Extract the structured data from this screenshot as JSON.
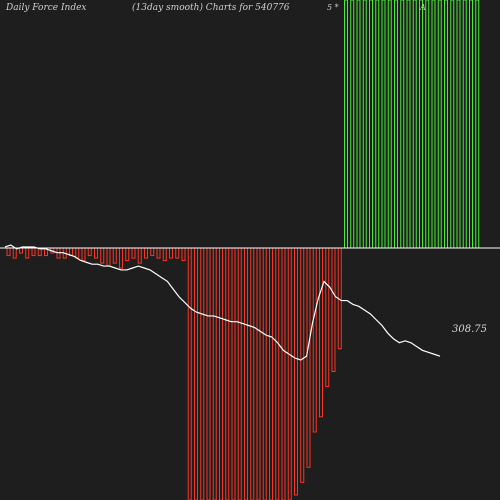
{
  "header": {
    "left_title": "Daily Force  Index",
    "center_title": "(13day smooth) Charts for 540776"
  },
  "labels": {
    "last_value": "308.75",
    "top_mark_a": "5 *",
    "top_mark_b": "A"
  },
  "colors": {
    "background": "#1e1e1e",
    "positive_bar": "#44ee33",
    "negative_bar": "#ff3322",
    "baseline": "#ffffff",
    "line": "#ffffff"
  },
  "chart_data": {
    "type": "bar",
    "title": "",
    "series": [
      {
        "values": [
          -0.03,
          -0.04,
          -0.02,
          -0.04,
          -0.03,
          -0.03,
          -0.03,
          -0.02,
          -0.04,
          -0.04,
          -0.03,
          -0.04,
          -0.05,
          -0.03,
          -0.04,
          -0.06,
          -0.07,
          -0.06,
          -0.08,
          -0.05,
          -0.04,
          -0.06,
          -0.04,
          -0.03,
          -0.04,
          -0.05,
          -0.04,
          -0.04,
          -0.05,
          -1.0,
          -1.0,
          -1.0,
          -1.0,
          -1.0,
          -1.0,
          -1.0,
          -1.0,
          -1.0,
          -1.0,
          -1.0,
          -1.0,
          -1.0,
          -1.0,
          -1.0,
          -1.0,
          -1.0,
          -0.98,
          -0.93,
          -0.87,
          -0.73,
          -0.67,
          -0.55,
          -0.49,
          -0.4,
          1.0,
          1.0,
          1.0,
          1.0,
          1.0,
          1.0,
          1.0,
          1.0,
          1.0,
          1.0,
          1.0,
          1.0,
          1.0,
          1.0,
          1.0,
          1.0,
          1.0,
          1.0,
          1.0,
          1.0,
          1.0,
          1.0
        ]
      }
    ],
    "price_line": [
      0.96,
      0.97,
      0.95,
      0.96,
      0.96,
      0.96,
      0.95,
      0.95,
      0.94,
      0.93,
      0.93,
      0.92,
      0.91,
      0.89,
      0.88,
      0.87,
      0.87,
      0.86,
      0.86,
      0.85,
      0.84,
      0.84,
      0.85,
      0.86,
      0.85,
      0.84,
      0.82,
      0.8,
      0.78,
      0.74,
      0.7,
      0.67,
      0.64,
      0.62,
      0.61,
      0.6,
      0.6,
      0.59,
      0.58,
      0.57,
      0.57,
      0.56,
      0.55,
      0.54,
      0.52,
      0.5,
      0.49,
      0.46,
      0.42,
      0.4,
      0.38,
      0.37,
      0.39,
      0.56,
      0.69,
      0.78,
      0.75,
      0.7,
      0.68,
      0.68,
      0.66,
      0.65,
      0.63,
      0.61,
      0.58,
      0.55,
      0.51,
      0.48,
      0.46,
      0.47,
      0.46,
      0.44,
      0.42,
      0.41,
      0.4,
      0.39
    ],
    "last_value": 308.75,
    "grid": false,
    "legend": "none"
  }
}
